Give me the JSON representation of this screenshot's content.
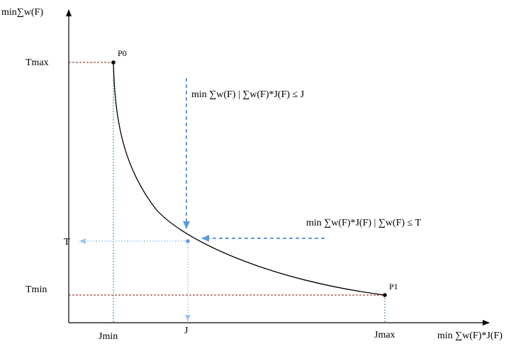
{
  "axes": {
    "y_label": "min∑w(F)",
    "x_label": "min ∑w(F)*J(F)",
    "y_ticks": {
      "tmax": "Tmax",
      "t": "T",
      "tmin": "Tmin"
    },
    "x_ticks": {
      "jmin": "Jmin",
      "j": "J",
      "jmax": "Jmax"
    }
  },
  "points": {
    "p0": "P0",
    "p1": "P1"
  },
  "annotations": {
    "vertical_query": "min ∑w(F) | ∑w(F)*J(F) ≤ J",
    "horizontal_query": "min ∑w(F)*J(F) | ∑w(F) ≤ T"
  },
  "colors": {
    "curve": "#000000",
    "axis": "#000000",
    "red_guide": "#8b1a1a",
    "green_guide": "#3f8f3f",
    "blue_arrow": "#5b9be6",
    "blue_guide": "#9fc3ee"
  }
}
